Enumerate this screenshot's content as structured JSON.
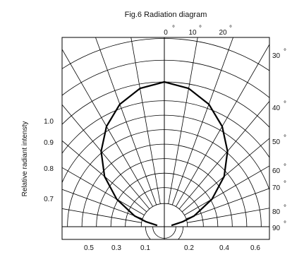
{
  "chart_data": {
    "type": "radiation-diagram",
    "title": "Fig.6 Radiation diagram",
    "ylabel": "Relative radiant intensty",
    "angle_tick_labels": [
      {
        "angle": 0,
        "label": "0"
      },
      {
        "angle": 10,
        "label": "10"
      },
      {
        "angle": 20,
        "label": "20"
      },
      {
        "angle": 30,
        "label": "30"
      },
      {
        "angle": 40,
        "label": "40"
      },
      {
        "angle": 50,
        "label": "50"
      },
      {
        "angle": 60,
        "label": "60"
      },
      {
        "angle": 70,
        "label": "70"
      },
      {
        "angle": 80,
        "label": "80"
      },
      {
        "angle": 90,
        "label": "90"
      }
    ],
    "degree_symbol": "°",
    "radius_tick_labels_left": [
      {
        "value": 1.0,
        "label": "1.0"
      },
      {
        "value": 0.9,
        "label": "0.9"
      },
      {
        "value": 0.8,
        "label": "0.8"
      },
      {
        "value": 0.7,
        "label": "0.7"
      }
    ],
    "bottom_tick_labels_left": [
      {
        "value": 0.5,
        "label": "0.5"
      },
      {
        "value": 0.3,
        "label": "0.3"
      },
      {
        "value": 0.1,
        "label": "0.1"
      }
    ],
    "bottom_tick_labels_right": [
      {
        "value": 0.2,
        "label": "0.2"
      },
      {
        "value": 0.4,
        "label": "0.4"
      },
      {
        "value": 0.6,
        "label": "0.6"
      }
    ],
    "pattern": {
      "angles": [
        -80,
        -75,
        -70,
        -60,
        -50,
        -40,
        -30,
        -20,
        -10,
        0,
        10,
        20,
        30,
        40,
        50,
        60,
        70,
        75,
        80
      ],
      "relative_intensity": [
        0.05,
        0.13,
        0.22,
        0.38,
        0.54,
        0.68,
        0.8,
        0.9,
        0.97,
        1.0,
        0.97,
        0.9,
        0.8,
        0.68,
        0.54,
        0.38,
        0.22,
        0.13,
        0.05
      ]
    }
  }
}
